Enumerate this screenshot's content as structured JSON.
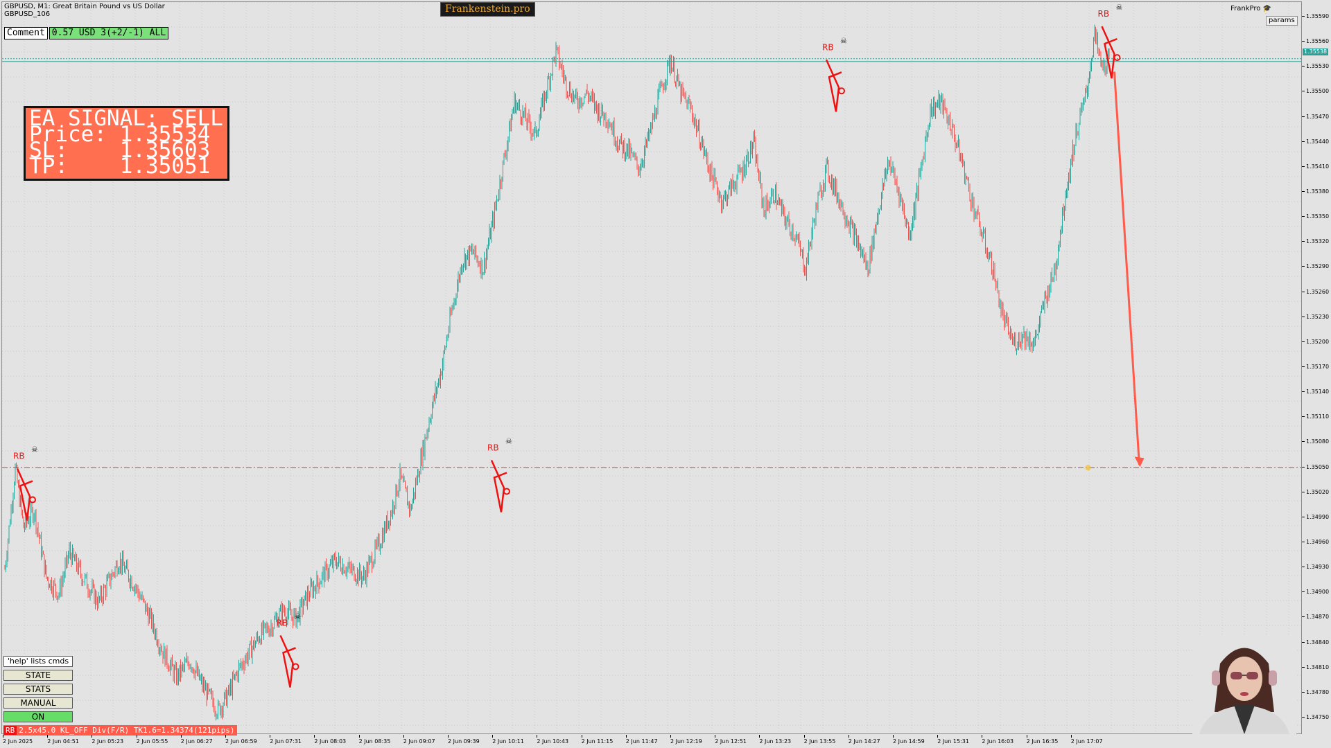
{
  "header": {
    "symbol_line": "GBPUSD, M1:  Great Britain Pound vs US Dollar",
    "account_line": "GBPUSD_106",
    "brand": "Frankenstein.pro",
    "frankpro_label": "FrankPro",
    "params_label": "params"
  },
  "comment_bar": {
    "button_label": "Comment",
    "value": "0.57 USD 3(+2/-1) ALL"
  },
  "signal_box": {
    "line1": "EA SIGNAL: SELL",
    "line2": "Price: 1.35534",
    "line3": "SL:    1.35603",
    "line4": "TP:    1.35051",
    "background": "#ff6f50"
  },
  "commands": {
    "help": "'help' lists cmds",
    "state": "STATE",
    "stats": "STATS",
    "manual": "MANUAL",
    "on": "ON"
  },
  "status": {
    "rb_tag": "RB",
    "text": "2.5x45.0 KL_OFF Div(F/R) TK1.6=1.34374(121pips)"
  },
  "price_axis": {
    "ticks": [
      "1.35590",
      "1.35560",
      "1.35530",
      "1.35500",
      "1.35470",
      "1.35440",
      "1.35410",
      "1.35380",
      "1.35350",
      "1.35320",
      "1.35290",
      "1.35260",
      "1.35230",
      "1.35200",
      "1.35170",
      "1.35140",
      "1.35110",
      "1.35080",
      "1.35050",
      "1.35020",
      "1.34990",
      "1.34960",
      "1.34930",
      "1.34900",
      "1.34870",
      "1.34840",
      "1.34810",
      "1.34780",
      "1.34750"
    ],
    "current_price_tag": "1.35538",
    "ymin": 1.34735,
    "ymax": 1.35605
  },
  "time_axis": {
    "ticks": [
      "2 Jun 2025",
      "2 Jun 04:51",
      "2 Jun 05:23",
      "2 Jun 05:55",
      "2 Jun 06:27",
      "2 Jun 06:59",
      "2 Jun 07:31",
      "2 Jun 08:03",
      "2 Jun 08:35",
      "2 Jun 09:07",
      "2 Jun 09:39",
      "2 Jun 10:11",
      "2 Jun 10:43",
      "2 Jun 11:15",
      "2 Jun 11:47",
      "2 Jun 12:19",
      "2 Jun 12:51",
      "2 Jun 13:23",
      "2 Jun 13:55",
      "2 Jun 14:27",
      "2 Jun 14:59",
      "2 Jun 15:31",
      "2 Jun 16:03",
      "2 Jun 16:35",
      "2 Jun 17:07"
    ]
  },
  "colors": {
    "background": "#e3e3e3",
    "grid": "#c8c8c8",
    "bull": "#26a69a",
    "bear": "#ef5350",
    "marker": "#ee1111",
    "tp_line": "#e03030",
    "price_line": "#2aa198",
    "arrow": "#ff5a4a"
  },
  "chart_data": {
    "type": "candlestick",
    "title": "GBPUSD, M1:  Great Britain Pound vs US Dollar",
    "ylim": [
      1.34735,
      1.35605
    ],
    "ohlc_path": [
      [
        0,
        1.3493
      ],
      [
        10,
        1.3505
      ],
      [
        18,
        1.3498
      ],
      [
        28,
        1.35
      ],
      [
        40,
        1.3492
      ],
      [
        52,
        1.349
      ],
      [
        62,
        1.3495
      ],
      [
        75,
        1.3492
      ],
      [
        90,
        1.3489
      ],
      [
        110,
        1.3494
      ],
      [
        125,
        1.3491
      ],
      [
        140,
        1.3487
      ],
      [
        152,
        1.3483
      ],
      [
        165,
        1.348
      ],
      [
        178,
        1.3482
      ],
      [
        190,
        1.3479
      ],
      [
        205,
        1.3476
      ],
      [
        215,
        1.3478
      ],
      [
        225,
        1.3481
      ],
      [
        235,
        1.3483
      ],
      [
        245,
        1.3485
      ],
      [
        255,
        1.3486
      ],
      [
        268,
        1.3488
      ],
      [
        280,
        1.3487
      ],
      [
        292,
        1.349
      ],
      [
        305,
        1.3492
      ],
      [
        318,
        1.3494
      ],
      [
        330,
        1.3493
      ],
      [
        345,
        1.3492
      ],
      [
        360,
        1.3496
      ],
      [
        372,
        1.35
      ],
      [
        380,
        1.3504
      ],
      [
        390,
        1.35
      ],
      [
        400,
        1.3506
      ],
      [
        410,
        1.3512
      ],
      [
        420,
        1.3517
      ],
      [
        430,
        1.3524
      ],
      [
        440,
        1.353
      ],
      [
        450,
        1.3531
      ],
      [
        460,
        1.3529
      ],
      [
        470,
        1.3535
      ],
      [
        480,
        1.3542
      ],
      [
        490,
        1.3549
      ],
      [
        500,
        1.3547
      ],
      [
        510,
        1.3545
      ],
      [
        520,
        1.355
      ],
      [
        530,
        1.3555
      ],
      [
        540,
        1.3551
      ],
      [
        550,
        1.3549
      ],
      [
        560,
        1.355
      ],
      [
        570,
        1.3548
      ],
      [
        580,
        1.3547
      ],
      [
        590,
        1.3544
      ],
      [
        600,
        1.3543
      ],
      [
        610,
        1.3541
      ],
      [
        620,
        1.3545
      ],
      [
        630,
        1.355
      ],
      [
        640,
        1.3554
      ],
      [
        650,
        1.355
      ],
      [
        660,
        1.3548
      ],
      [
        670,
        1.3544
      ],
      [
        680,
        1.354
      ],
      [
        690,
        1.3537
      ],
      [
        700,
        1.3539
      ],
      [
        710,
        1.3541
      ],
      [
        720,
        1.3544
      ],
      [
        730,
        1.3536
      ],
      [
        740,
        1.3538
      ],
      [
        750,
        1.3535
      ],
      [
        760,
        1.3533
      ],
      [
        770,
        1.3529
      ],
      [
        780,
        1.3536
      ],
      [
        790,
        1.3541
      ],
      [
        800,
        1.3538
      ],
      [
        810,
        1.3535
      ],
      [
        820,
        1.3532
      ],
      [
        830,
        1.3529
      ],
      [
        840,
        1.3536
      ],
      [
        850,
        1.3542
      ],
      [
        860,
        1.3538
      ],
      [
        870,
        1.3533
      ],
      [
        880,
        1.354
      ],
      [
        890,
        1.3548
      ],
      [
        900,
        1.3549
      ],
      [
        910,
        1.3546
      ],
      [
        920,
        1.3542
      ],
      [
        930,
        1.3537
      ],
      [
        940,
        1.3533
      ],
      [
        950,
        1.3529
      ],
      [
        960,
        1.3523
      ],
      [
        970,
        1.352
      ],
      [
        980,
        1.3521
      ],
      [
        990,
        1.352
      ],
      [
        1000,
        1.3525
      ],
      [
        1010,
        1.3529
      ],
      [
        1020,
        1.3538
      ],
      [
        1030,
        1.3545
      ],
      [
        1040,
        1.355
      ],
      [
        1048,
        1.3557
      ],
      [
        1055,
        1.3553
      ],
      [
        1062,
        1.3554
      ]
    ],
    "markers": [
      {
        "label": "RB",
        "price": 1.3505,
        "index": 12
      },
      {
        "label": "RB",
        "price": 1.3485,
        "index": 265
      },
      {
        "label": "RB",
        "price": 1.3506,
        "index": 468
      },
      {
        "label": "RB",
        "price": 1.3554,
        "index": 790
      },
      {
        "label": "RB",
        "price": 1.3558,
        "index": 1055
      }
    ],
    "horizontal_lines": [
      {
        "name": "take-profit",
        "price": 1.35051,
        "style": "dash-dot"
      },
      {
        "name": "current-price",
        "price": 1.35538,
        "style": "dotted"
      }
    ],
    "arrow": {
      "from_price": 1.35534,
      "to_price": 1.35051
    }
  }
}
